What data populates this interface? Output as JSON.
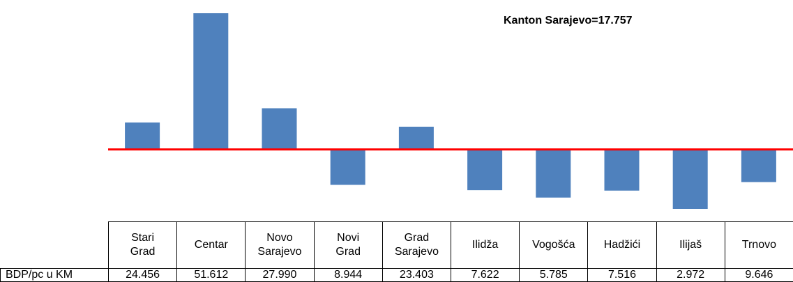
{
  "chart_data": {
    "type": "bar",
    "categories": [
      "Stari Grad",
      "Centar",
      "Novo Sarajevo",
      "Novi Grad",
      "Grad Sarajevo",
      "Ilidža",
      "Vogošća",
      "Hadžići",
      "Ilijaš",
      "Trnovo"
    ],
    "series": [
      {
        "name": "BDP/pc u KM",
        "color": "#4f81bd",
        "values": [
          24456,
          51612,
          27990,
          8944,
          23403,
          7622,
          5785,
          7516,
          2972,
          9646
        ],
        "value_labels": [
          "24.456",
          "51.612",
          "27.990",
          "8.944",
          "23.403",
          "7.622",
          "5.785",
          "7.516",
          "2.972",
          "9.646"
        ]
      }
    ],
    "reference_line": {
      "value": 17757,
      "label": "Kanton Sarajevo=17.757",
      "color": "#ff0000"
    }
  }
}
